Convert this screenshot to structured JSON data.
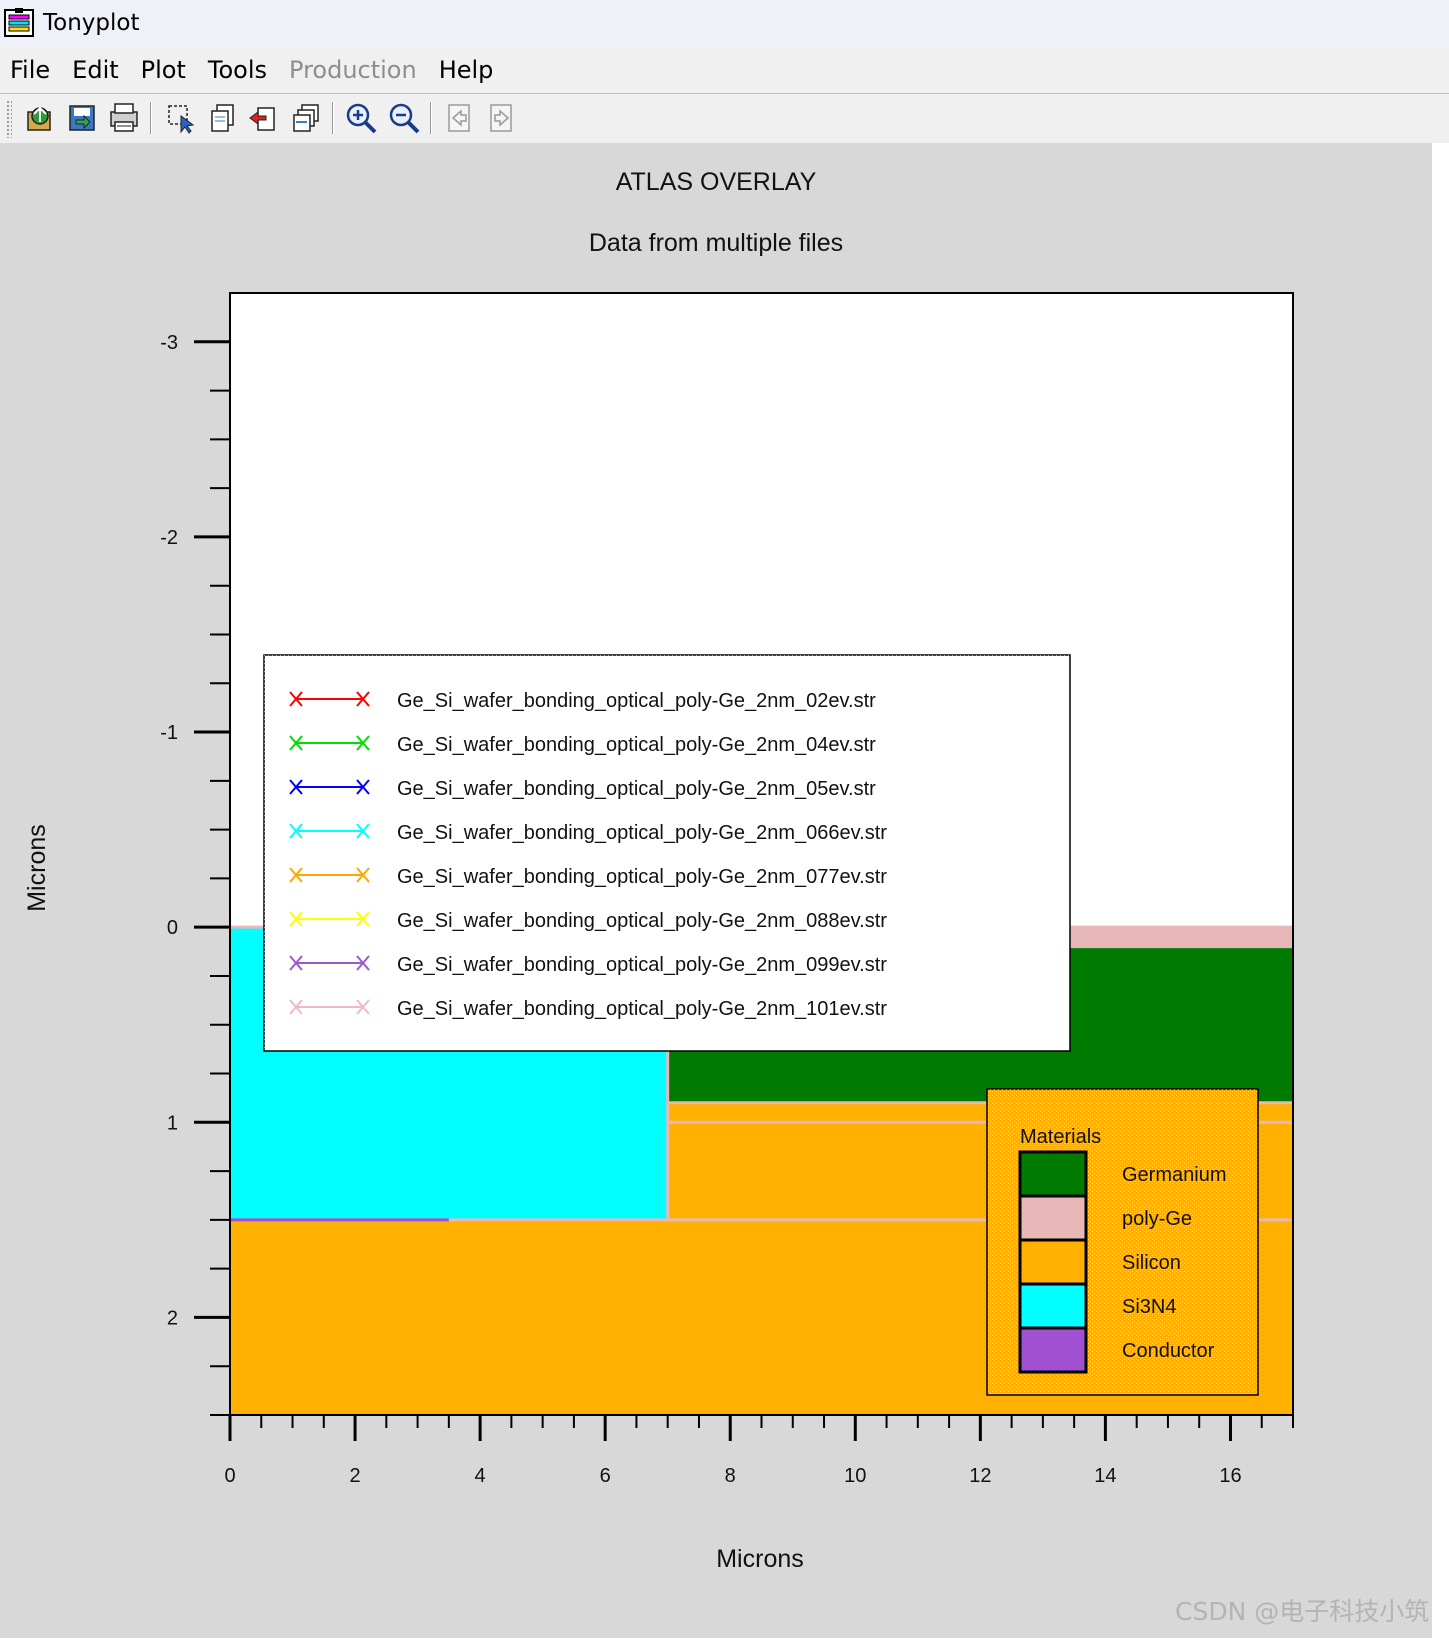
{
  "window": {
    "title": "Tonyplot",
    "icon": "tonyplot-app-icon"
  },
  "menu": {
    "items": [
      {
        "label": "File",
        "enabled": true
      },
      {
        "label": "Edit",
        "enabled": true
      },
      {
        "label": "Plot",
        "enabled": true
      },
      {
        "label": "Tools",
        "enabled": true
      },
      {
        "label": "Production",
        "enabled": false
      },
      {
        "label": "Help",
        "enabled": true
      }
    ]
  },
  "toolbar": {
    "buttons": [
      {
        "name": "open-icon"
      },
      {
        "name": "save-icon"
      },
      {
        "name": "print-icon"
      },
      {
        "name": "select-icon"
      },
      {
        "name": "copy-icon"
      },
      {
        "name": "delete-icon"
      },
      {
        "name": "overlay-icon"
      },
      {
        "name": "zoom-in-icon"
      },
      {
        "name": "zoom-out-icon"
      },
      {
        "name": "previous-icon",
        "enabled": false
      },
      {
        "name": "next-icon",
        "enabled": false
      }
    ]
  },
  "chart_data": {
    "type": "heatmap",
    "title": "ATLAS OVERLAY",
    "subtitle": "Data from multiple files",
    "xlabel": "Microns",
    "ylabel": "Microns",
    "xlim": [
      0,
      17
    ],
    "ylim": [
      2.5,
      -3.25
    ],
    "y_inverted": true,
    "xticks": [
      0,
      2,
      4,
      6,
      8,
      10,
      12,
      14,
      16
    ],
    "yticks": [
      -3,
      -2,
      -1,
      0,
      1,
      2
    ],
    "regions": [
      {
        "material": "Silicon",
        "x": [
          0,
          17
        ],
        "y": [
          1.5,
          2.5
        ]
      },
      {
        "material": "Si3N4",
        "x": [
          0,
          7
        ],
        "y": [
          0,
          1.5
        ]
      },
      {
        "material": "Silicon",
        "x": [
          7,
          17
        ],
        "y": [
          0.9,
          1.5
        ]
      },
      {
        "material": "Germanium",
        "x": [
          7,
          17
        ],
        "y": [
          0.1,
          0.9
        ]
      },
      {
        "material": "poly-Ge",
        "x": [
          7,
          17
        ],
        "y": [
          0.0,
          0.1
        ]
      }
    ],
    "interface_lines": [
      0.0,
      0.1,
      0.9,
      1.0,
      1.5
    ],
    "conductor_line": {
      "x": [
        0,
        3.5
      ],
      "y": 1.5
    },
    "files_legend": [
      {
        "label": "Ge_Si_wafer_bonding_optical_poly-Ge_2nm_02ev.str",
        "color": "#ff0000"
      },
      {
        "label": "Ge_Si_wafer_bonding_optical_poly-Ge_2nm_04ev.str",
        "color": "#00dd00"
      },
      {
        "label": "Ge_Si_wafer_bonding_optical_poly-Ge_2nm_05ev.str",
        "color": "#0000ff"
      },
      {
        "label": "Ge_Si_wafer_bonding_optical_poly-Ge_2nm_066ev.str",
        "color": "#00ffff"
      },
      {
        "label": "Ge_Si_wafer_bonding_optical_poly-Ge_2nm_077ev.str",
        "color": "#ffa500"
      },
      {
        "label": "Ge_Si_wafer_bonding_optical_poly-Ge_2nm_088ev.str",
        "color": "#ffff00"
      },
      {
        "label": "Ge_Si_wafer_bonding_optical_poly-Ge_2nm_099ev.str",
        "color": "#9b59d0"
      },
      {
        "label": "Ge_Si_wafer_bonding_optical_poly-Ge_2nm_101ev.str",
        "color": "#f2b8c6"
      }
    ],
    "materials_legend": {
      "title": "Materials",
      "items": [
        {
          "label": "Germanium",
          "color": "#007a00"
        },
        {
          "label": "poly-Ge",
          "color": "#e8b8b8"
        },
        {
          "label": "Silicon",
          "color": "#ffb000"
        },
        {
          "label": "Si3N4",
          "color": "#00ffff"
        },
        {
          "label": "Conductor",
          "color": "#a050d0"
        }
      ]
    }
  },
  "watermark": "CSDN @电子科技小筑"
}
